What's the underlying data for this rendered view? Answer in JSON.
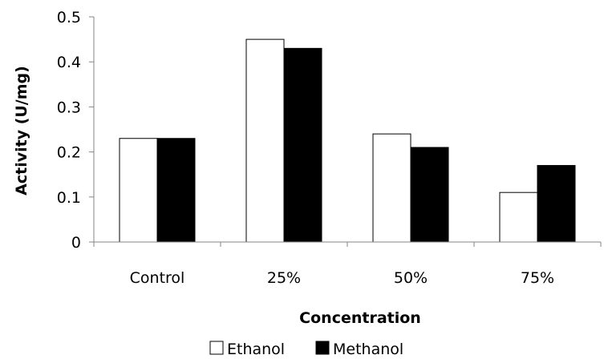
{
  "chart_data": {
    "type": "bar",
    "title": "",
    "xlabel": "Concentration",
    "ylabel": "Activity (U/mg)",
    "categories": [
      "Control",
      "25%",
      "50%",
      "75%"
    ],
    "series": [
      {
        "name": "Ethanol",
        "values": [
          0.23,
          0.45,
          0.24,
          0.11
        ],
        "color": "#ffffff"
      },
      {
        "name": "Methanol",
        "values": [
          0.23,
          0.43,
          0.21,
          0.17
        ],
        "color": "#000000"
      }
    ],
    "ylim": [
      0,
      0.5
    ],
    "yticks": [
      0,
      0.1,
      0.2,
      0.3,
      0.4,
      0.5
    ],
    "ytick_labels": [
      "0",
      "0.1",
      "0.2",
      "0.3",
      "0.4",
      "0.5"
    ],
    "grid": false,
    "legend_position": "bottom"
  }
}
